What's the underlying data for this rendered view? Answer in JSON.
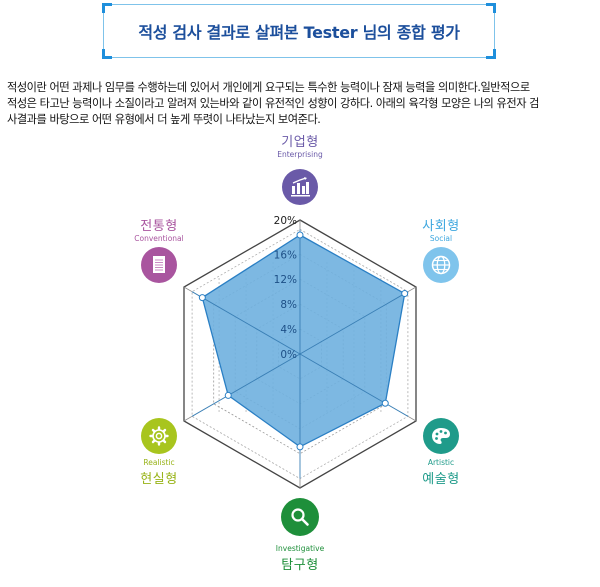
{
  "header": {
    "title": "적성 검사 결과로 살펴본 Tester 님의 종합 평가"
  },
  "description": {
    "lines": [
      "적성이란 어떤 과제나 임무를 수행하는데 있어서 개인에게 요구되는 특수한 능력이나 잠재 능력을 의미한다.일반적으로",
      "적성은 타고난 능력이나 소질이라고 알려져 있는바와 같이 유전적인 성향이 강하다. 아래의 육각형 모양은 나의 유전자 검",
      "사결과를 바탕으로 어떤 유형에서 더 높게 뚜렷이 나타났는지 보여준다."
    ]
  },
  "types": [
    {
      "ko": "기업형",
      "en": "Enterprising",
      "color": "#6a5aa8",
      "icon": "chart-growth-icon"
    },
    {
      "ko": "사회형",
      "en": "Social",
      "color": "#7fc4ec",
      "icon": "globe-icon"
    },
    {
      "ko": "예술형",
      "en": "Artistic",
      "color": "#1f9b8a",
      "icon": "palette-icon"
    },
    {
      "ko": "탐구형",
      "en": "Investigative",
      "color": "#1e8f3a",
      "icon": "magnifier-icon"
    },
    {
      "ko": "현실형",
      "en": "Realistic",
      "color": "#a8c51e",
      "icon": "gear-icon"
    },
    {
      "ko": "전통형",
      "en": "Conventional",
      "color": "#a9559f",
      "icon": "document-icon"
    }
  ],
  "chart_data": {
    "type": "radar",
    "title": "",
    "categories": [
      "Enterprising",
      "Social",
      "Artistic",
      "Investigative",
      "Realistic",
      "Conventional"
    ],
    "categories_ko": [
      "기업형",
      "사회형",
      "예술형",
      "탐구형",
      "현실형",
      "전통형"
    ],
    "series": [
      {
        "name": "Tester",
        "values": [
          19.1,
          19.4,
          15.8,
          14.9,
          13.3,
          18.1
        ]
      }
    ],
    "axis_ticks": [
      "0%",
      "4%",
      "8%",
      "12%",
      "16%",
      "20%"
    ],
    "rlim": [
      0,
      20
    ],
    "grid": true,
    "fill_color": "#6fb0df",
    "line_color": "#2a7fc4"
  }
}
